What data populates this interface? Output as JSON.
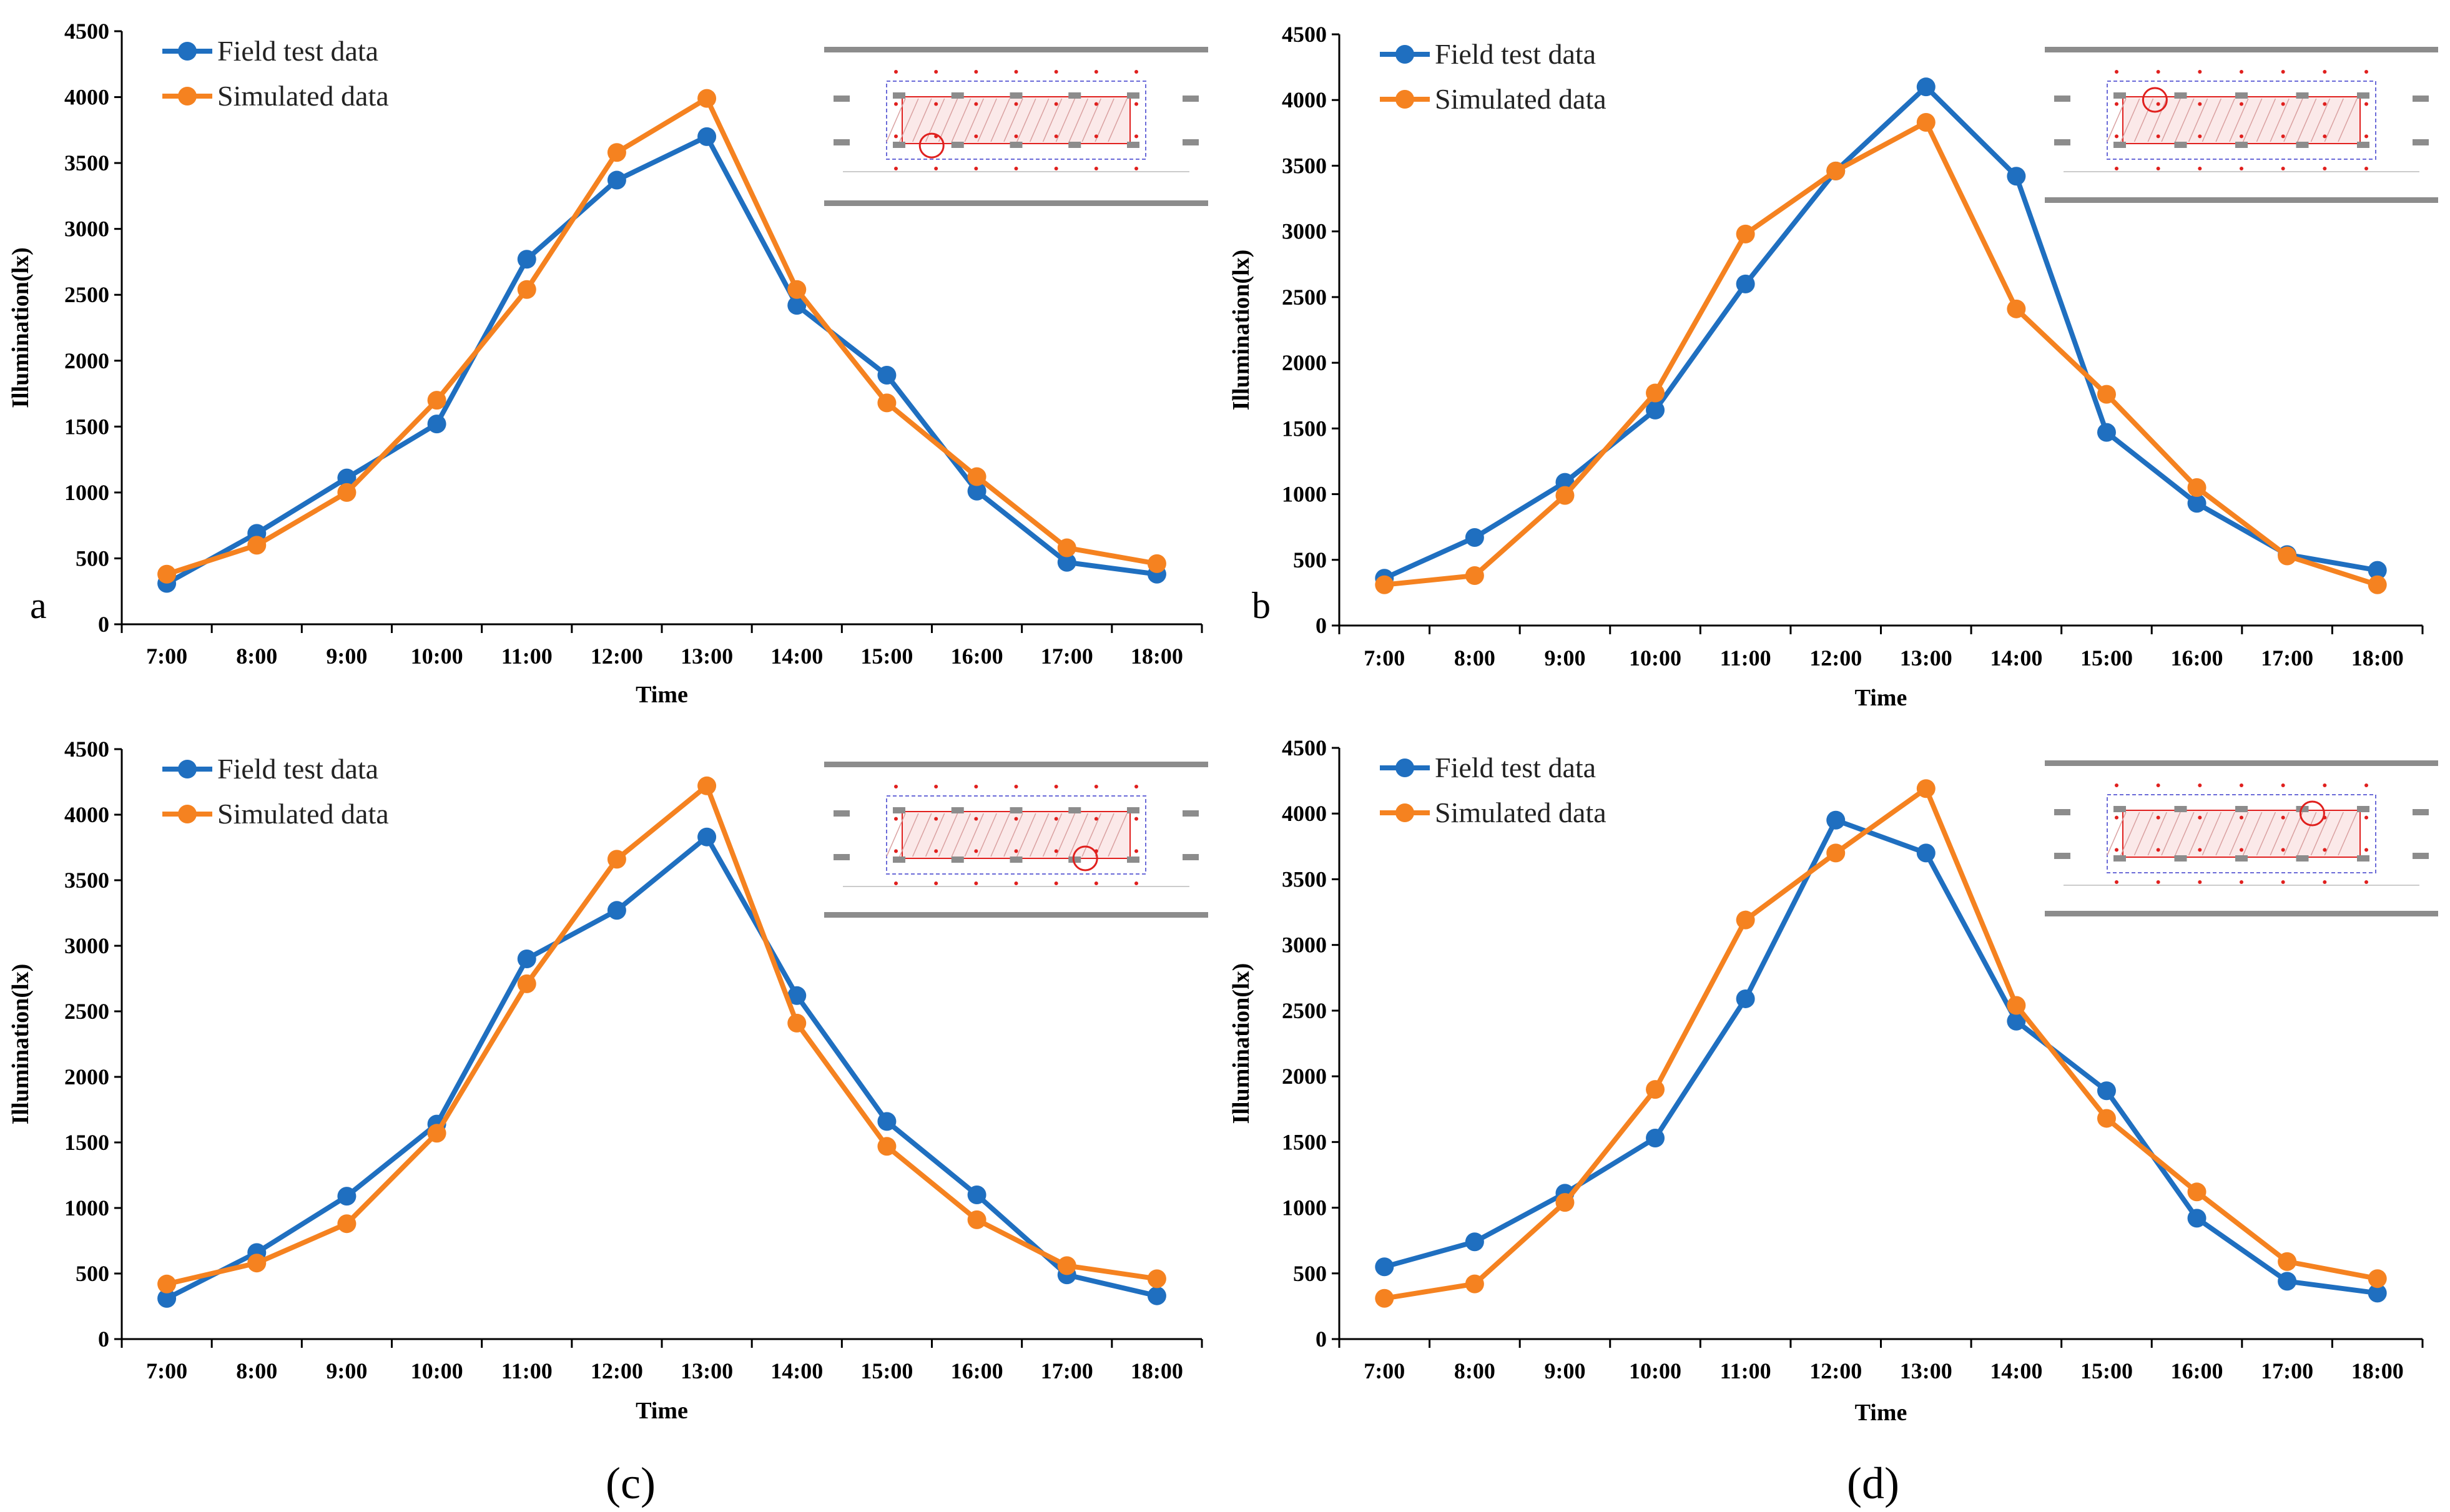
{
  "colors": {
    "field": "#1f6fc0",
    "simulated": "#f58220",
    "axis": "#000000",
    "inset_gray": "#8c8c8c",
    "inset_red": "#e0201e"
  },
  "chart_data": [
    {
      "type": "line",
      "panel_label": "a",
      "caption": "",
      "x": [
        "7:00",
        "8:00",
        "9:00",
        "10:00",
        "11:00",
        "12:00",
        "13:00",
        "14:00",
        "15:00",
        "16:00",
        "17:00",
        "18:00"
      ],
      "xlabel": "Time",
      "ylabel": "Illumination(lx)",
      "ylim": [
        0,
        4500
      ],
      "yticks": [
        0,
        500,
        1000,
        1500,
        2000,
        2500,
        3000,
        3500,
        4000,
        4500
      ],
      "legend": "top-left",
      "inset_marker": [
        0.28,
        0.62
      ],
      "series": [
        {
          "name": "Field test data",
          "color": "#1f6fc0",
          "values": [
            310,
            690,
            1110,
            1520,
            2770,
            3370,
            3700,
            2420,
            1890,
            1010,
            470,
            380
          ]
        },
        {
          "name": "Simulated data",
          "color": "#f58220",
          "values": [
            380,
            600,
            1000,
            1700,
            2540,
            3580,
            3990,
            2540,
            1680,
            1120,
            580,
            460
          ]
        }
      ]
    },
    {
      "type": "line",
      "panel_label": "b",
      "caption": "",
      "x": [
        "7:00",
        "8:00",
        "9:00",
        "10:00",
        "11:00",
        "12:00",
        "13:00",
        "14:00",
        "15:00",
        "16:00",
        "17:00",
        "18:00"
      ],
      "xlabel": "Time",
      "ylabel": "Illumination(lx)",
      "ylim": [
        0,
        4500
      ],
      "yticks": [
        0,
        500,
        1000,
        1500,
        2000,
        2500,
        3000,
        3500,
        4000,
        4500
      ],
      "legend": "top-left",
      "inset_marker": [
        0.28,
        0.34
      ],
      "series": [
        {
          "name": "Field test data",
          "color": "#1f6fc0",
          "values": [
            360,
            670,
            1090,
            1640,
            2600,
            3460,
            4100,
            3420,
            1470,
            930,
            540,
            420
          ]
        },
        {
          "name": "Simulated data",
          "color": "#f58220",
          "values": [
            310,
            380,
            990,
            1770,
            2980,
            3460,
            3830,
            2410,
            1760,
            1050,
            530,
            310
          ]
        }
      ]
    },
    {
      "type": "line",
      "panel_label": "",
      "caption": "(c)",
      "x": [
        "7:00",
        "8:00",
        "9:00",
        "10:00",
        "11:00",
        "12:00",
        "13:00",
        "14:00",
        "15:00",
        "16:00",
        "17:00",
        "18:00"
      ],
      "xlabel": "Time",
      "ylabel": "Illumination(lx)",
      "ylim": [
        0,
        4500
      ],
      "yticks": [
        0,
        500,
        1000,
        1500,
        2000,
        2500,
        3000,
        3500,
        4000,
        4500
      ],
      "legend": "top-left",
      "inset_marker": [
        0.68,
        0.62
      ],
      "series": [
        {
          "name": "Field test data",
          "color": "#1f6fc0",
          "values": [
            310,
            660,
            1090,
            1640,
            2900,
            3270,
            3830,
            2620,
            1660,
            1100,
            490,
            330
          ]
        },
        {
          "name": "Simulated data",
          "color": "#f58220",
          "values": [
            420,
            580,
            880,
            1570,
            2710,
            3660,
            4220,
            2410,
            1470,
            910,
            560,
            460
          ]
        }
      ]
    },
    {
      "type": "line",
      "panel_label": "",
      "caption": "(d)",
      "x": [
        "7:00",
        "8:00",
        "9:00",
        "10:00",
        "11:00",
        "12:00",
        "13:00",
        "14:00",
        "15:00",
        "16:00",
        "17:00",
        "18:00"
      ],
      "xlabel": "Time",
      "ylabel": "Illumination(lx)",
      "ylim": [
        0,
        4500
      ],
      "yticks": [
        0,
        500,
        1000,
        1500,
        2000,
        2500,
        3000,
        3500,
        4000,
        4500
      ],
      "legend": "top-left",
      "inset_marker": [
        0.68,
        0.34
      ],
      "series": [
        {
          "name": "Field test data",
          "color": "#1f6fc0",
          "values": [
            550,
            740,
            1110,
            1530,
            2590,
            3950,
            3700,
            2420,
            1890,
            920,
            440,
            350
          ]
        },
        {
          "name": "Simulated data",
          "color": "#f58220",
          "values": [
            310,
            420,
            1040,
            1900,
            3190,
            3700,
            4190,
            2540,
            1680,
            1120,
            590,
            460
          ]
        }
      ]
    }
  ]
}
